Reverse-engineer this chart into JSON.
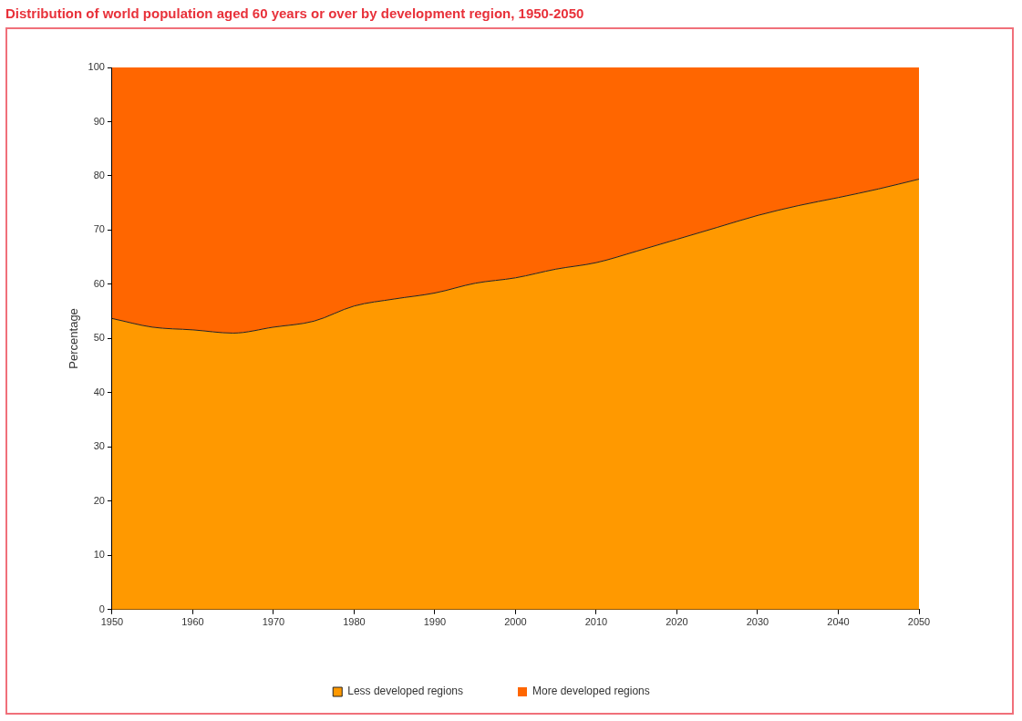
{
  "chart_data": {
    "type": "area",
    "title": "Distribution of world population aged 60 years or over by development region, 1950-2050",
    "ylabel": "Percentage",
    "stacked": true,
    "legend": "bottom",
    "grid": false,
    "x": [
      1950,
      1955,
      1960,
      1965,
      1970,
      1975,
      1980,
      1985,
      1990,
      1995,
      2000,
      2005,
      2010,
      2015,
      2020,
      2025,
      2030,
      2035,
      2040,
      2045,
      2050
    ],
    "xlim": [
      1950,
      2050
    ],
    "xticks": [
      1950,
      1960,
      1970,
      1980,
      1990,
      2000,
      2010,
      2020,
      2030,
      2040,
      2050
    ],
    "ylim": [
      0,
      100
    ],
    "yticks": [
      0,
      10,
      20,
      30,
      40,
      50,
      60,
      70,
      80,
      90,
      100
    ],
    "series": [
      {
        "name": "Less developed regions",
        "color": "#ff9900",
        "values": [
          53.7,
          52.1,
          51.6,
          51.0,
          52.1,
          53.2,
          56.0,
          57.3,
          58.4,
          60.2,
          61.2,
          62.8,
          64.0,
          66.1,
          68.3,
          70.5,
          72.7,
          74.5,
          76.0,
          77.6,
          79.4
        ]
      },
      {
        "name": "More developed regions",
        "color": "#ff6600",
        "values": [
          46.3,
          47.9,
          48.4,
          49.0,
          47.9,
          46.8,
          44.0,
          42.7,
          41.6,
          39.8,
          38.8,
          37.2,
          36.0,
          33.9,
          31.7,
          29.5,
          27.3,
          25.5,
          24.0,
          22.4,
          20.6
        ]
      }
    ]
  }
}
